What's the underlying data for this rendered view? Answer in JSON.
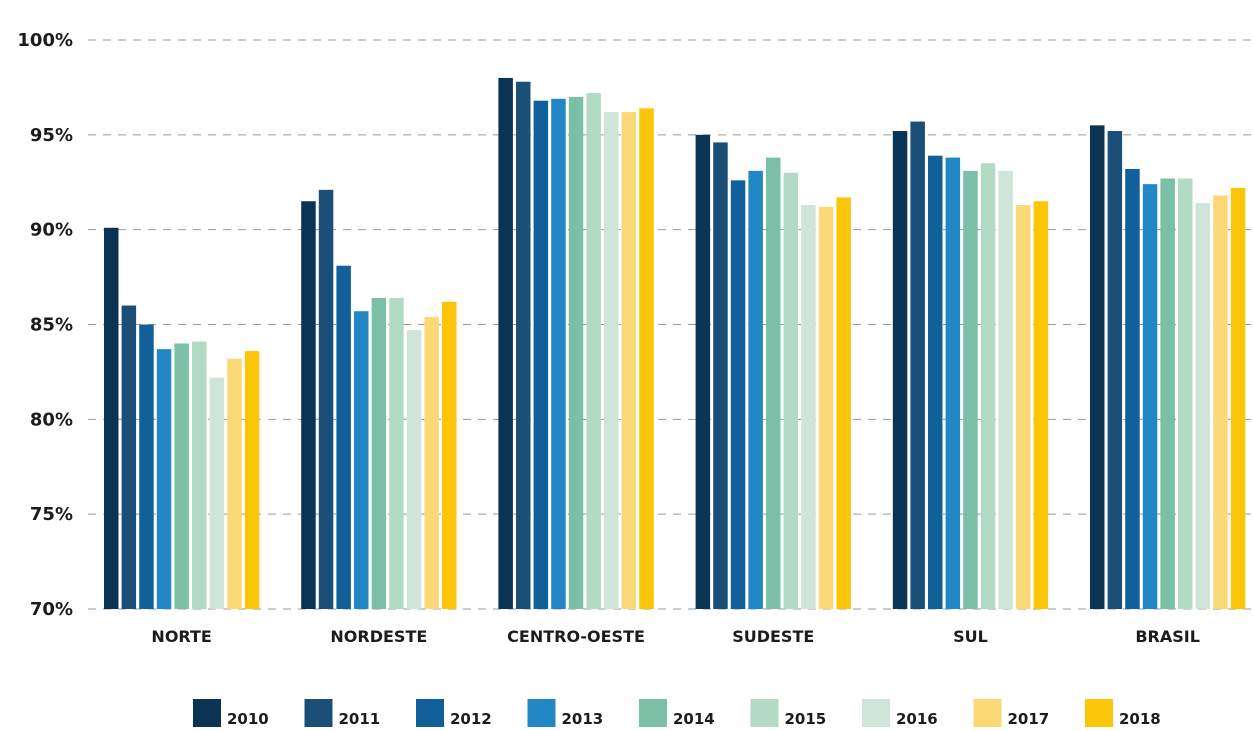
{
  "chart_data": {
    "type": "bar",
    "title": "",
    "xlabel": "",
    "ylabel": "",
    "ylim": [
      70,
      100
    ],
    "yticks": [
      70,
      75,
      80,
      85,
      90,
      95,
      100
    ],
    "ytick_labels": [
      "70%",
      "75%",
      "80%",
      "85%",
      "90%",
      "95%",
      "100%"
    ],
    "grid": true,
    "legend_position": "bottom",
    "categories": [
      "NORTE",
      "NORDESTE",
      "CENTRO-OESTE",
      "SUDESTE",
      "SUL",
      "BRASIL"
    ],
    "series": [
      {
        "name": "2010",
        "color": "#0b3454",
        "values": [
          90.1,
          91.5,
          98.0,
          95.0,
          95.2,
          95.5
        ]
      },
      {
        "name": "2011",
        "color": "#1b4f77",
        "values": [
          86.0,
          92.1,
          97.8,
          94.6,
          95.7,
          95.2
        ]
      },
      {
        "name": "2012",
        "color": "#12609a",
        "values": [
          85.0,
          88.1,
          96.8,
          92.6,
          93.9,
          93.2
        ]
      },
      {
        "name": "2013",
        "color": "#2287c4",
        "values": [
          83.7,
          85.7,
          96.9,
          93.1,
          93.8,
          92.4
        ]
      },
      {
        "name": "2014",
        "color": "#7bbfa6",
        "values": [
          84.0,
          86.4,
          97.0,
          93.8,
          93.1,
          92.7
        ]
      },
      {
        "name": "2015",
        "color": "#b3dac4",
        "values": [
          84.1,
          86.4,
          97.2,
          93.0,
          93.5,
          92.7
        ]
      },
      {
        "name": "2016",
        "color": "#cfe5d9",
        "values": [
          82.2,
          84.7,
          96.2,
          91.3,
          93.1,
          91.4
        ]
      },
      {
        "name": "2017",
        "color": "#fbd977",
        "values": [
          83.2,
          85.4,
          96.2,
          91.2,
          91.3,
          91.8
        ]
      },
      {
        "name": "2018",
        "color": "#fbc60a",
        "values": [
          83.6,
          86.2,
          96.4,
          91.7,
          91.5,
          92.2
        ]
      }
    ]
  }
}
